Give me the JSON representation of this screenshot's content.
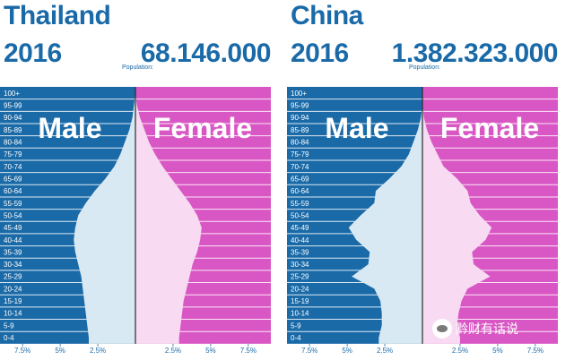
{
  "colors": {
    "title": "#1a6aa8",
    "male_bg": "#1a6aa8",
    "female_bg": "#d957c4",
    "male_fill": "#d9e9f3",
    "female_fill": "#f8daf2",
    "center_line": "#2a2a2a",
    "axis_text": "#1a6aa8"
  },
  "labels": {
    "male": "Male",
    "female": "Female",
    "population_label": "Population:"
  },
  "age_groups": [
    "100+",
    "95-99",
    "90-94",
    "85-89",
    "80-84",
    "75-79",
    "70-74",
    "65-69",
    "60-64",
    "55-59",
    "50-54",
    "45-49",
    "40-44",
    "35-39",
    "30-34",
    "25-29",
    "20-24",
    "15-19",
    "10-14",
    "5-9",
    "0-4"
  ],
  "axis_ticks": [
    "7.5%",
    "5%",
    "2.5%",
    "",
    "2.5%",
    "5%",
    "7.5%"
  ],
  "panels": [
    {
      "country": "Thailand",
      "year": "2016",
      "population": "68.146.000"
    },
    {
      "country": "China",
      "year": "2016",
      "population": "1.382.323.000"
    }
  ],
  "chart_data": [
    {
      "type": "population-pyramid",
      "title": "Thailand 2016",
      "categories": [
        "100+",
        "95-99",
        "90-94",
        "85-89",
        "80-84",
        "75-79",
        "70-74",
        "65-69",
        "60-64",
        "55-59",
        "50-54",
        "45-49",
        "40-44",
        "35-39",
        "30-34",
        "25-29",
        "20-24",
        "15-19",
        "10-14",
        "5-9",
        "0-4"
      ],
      "x_unit": "%",
      "xlim": [
        -9.0,
        9.0
      ],
      "series": [
        {
          "name": "Male",
          "values": [
            0.0,
            0.1,
            0.2,
            0.4,
            0.7,
            1.0,
            1.4,
            2.0,
            2.7,
            3.3,
            3.8,
            4.0,
            4.1,
            4.0,
            3.8,
            3.6,
            3.5,
            3.4,
            3.3,
            3.2,
            3.1
          ]
        },
        {
          "name": "Female",
          "values": [
            0.0,
            0.1,
            0.3,
            0.6,
            0.9,
            1.3,
            1.8,
            2.4,
            3.0,
            3.6,
            4.1,
            4.4,
            4.3,
            4.1,
            3.8,
            3.6,
            3.4,
            3.2,
            3.1,
            3.0,
            2.9
          ]
        }
      ]
    },
    {
      "type": "population-pyramid",
      "title": "China 2016",
      "categories": [
        "100+",
        "95-99",
        "90-94",
        "85-89",
        "80-84",
        "75-79",
        "70-74",
        "65-69",
        "60-64",
        "55-59",
        "50-54",
        "45-49",
        "40-44",
        "35-39",
        "30-34",
        "25-29",
        "20-24",
        "15-19",
        "10-14",
        "5-9",
        "0-4"
      ],
      "x_unit": "%",
      "xlim": [
        -9.0,
        9.0
      ],
      "series": [
        {
          "name": "Male",
          "values": [
            0.0,
            0.0,
            0.1,
            0.3,
            0.6,
            0.9,
            1.4,
            2.2,
            3.1,
            3.2,
            4.1,
            4.9,
            4.4,
            3.5,
            3.6,
            4.7,
            3.2,
            2.8,
            2.7,
            2.7,
            2.9
          ]
        },
        {
          "name": "Female",
          "values": [
            0.0,
            0.0,
            0.1,
            0.3,
            0.6,
            1.0,
            1.4,
            2.3,
            3.0,
            3.2,
            3.8,
            4.6,
            4.2,
            3.3,
            3.4,
            4.5,
            3.0,
            2.6,
            2.4,
            2.3,
            2.5
          ]
        }
      ]
    }
  ],
  "watermark": "黔财有话说"
}
